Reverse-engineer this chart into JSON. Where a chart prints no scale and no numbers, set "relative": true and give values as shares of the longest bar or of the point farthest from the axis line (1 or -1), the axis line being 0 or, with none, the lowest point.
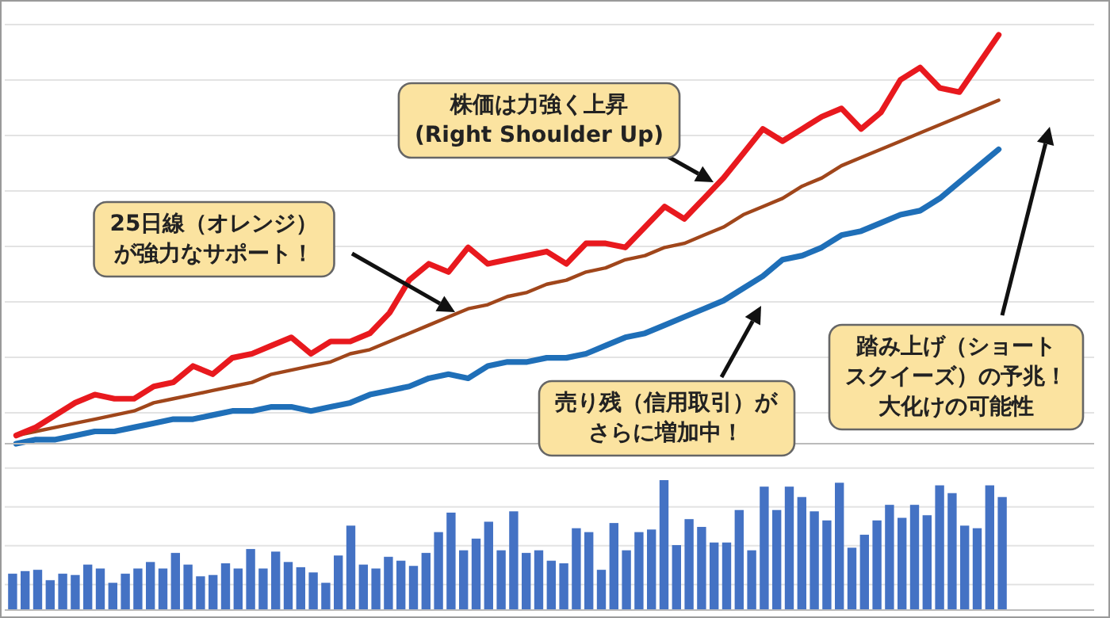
{
  "chart_data": [
    {
      "type": "line",
      "relative": true,
      "grid": true,
      "categories": [
        null,
        null,
        null,
        null,
        null,
        null,
        null,
        null,
        null,
        null,
        null,
        null,
        null,
        null,
        null,
        null,
        null,
        null,
        null,
        null,
        null,
        null,
        null,
        null,
        null,
        null,
        null,
        null,
        null,
        null,
        null,
        null,
        null,
        null,
        null,
        null,
        null,
        null,
        null,
        null,
        null,
        null,
        null,
        null,
        null,
        null,
        null,
        null,
        null,
        null,
        null
      ],
      "series": [
        {
          "color": "#a0461b",
          "values": [
            0.02,
            0.03,
            0.04,
            0.05,
            0.06,
            0.07,
            0.08,
            0.1,
            0.11,
            0.12,
            0.13,
            0.14,
            0.15,
            0.17,
            0.18,
            0.19,
            0.2,
            0.22,
            0.23,
            0.25,
            0.27,
            0.29,
            0.31,
            0.33,
            0.34,
            0.36,
            0.37,
            0.39,
            0.4,
            0.42,
            0.43,
            0.45,
            0.46,
            0.48,
            0.49,
            0.51,
            0.53,
            0.56,
            0.58,
            0.6,
            0.63,
            0.65,
            0.68,
            0.7,
            0.72,
            0.74,
            0.76,
            0.78,
            0.8,
            0.82,
            0.84
          ]
        },
        {
          "color": "#1f6fb8",
          "values": [
            0,
            0.01,
            0.01,
            0.02,
            0.03,
            0.03,
            0.04,
            0.05,
            0.06,
            0.06,
            0.07,
            0.08,
            0.08,
            0.09,
            0.09,
            0.08,
            0.09,
            0.1,
            0.12,
            0.13,
            0.14,
            0.16,
            0.17,
            0.16,
            0.19,
            0.2,
            0.2,
            0.21,
            0.21,
            0.22,
            0.24,
            0.26,
            0.27,
            0.29,
            0.31,
            0.33,
            0.35,
            0.38,
            0.41,
            0.45,
            0.46,
            0.48,
            0.51,
            0.52,
            0.54,
            0.56,
            0.57,
            0.6,
            0.64,
            0.68,
            0.72
          ]
        },
        {
          "color": "#e8191e",
          "values": [
            0.02,
            0.04,
            0.07,
            0.1,
            0.12,
            0.11,
            0.11,
            0.14,
            0.15,
            0.19,
            0.17,
            0.21,
            0.22,
            0.24,
            0.26,
            0.22,
            0.25,
            0.25,
            0.27,
            0.32,
            0.4,
            0.44,
            0.42,
            0.48,
            0.44,
            0.45,
            0.46,
            0.47,
            0.44,
            0.49,
            0.49,
            0.48,
            0.53,
            0.58,
            0.55,
            0.6,
            0.65,
            0.71,
            0.77,
            0.74,
            0.77,
            0.8,
            0.82,
            0.77,
            0.81,
            0.89,
            0.92,
            0.87,
            0.86,
            0.93,
            1.0
          ]
        }
      ],
      "annotations": [
        "株価は力強く上昇\n(Right Shoulder Up)",
        "25日線（オレンジ）が強力なサポート！",
        "売り残（信用取引）がさらに増加中！",
        "踏み上げ（ショートスクイーズ）の予兆！大化けの可能性"
      ]
    },
    {
      "type": "bar",
      "relative": true,
      "grid": true,
      "color": "#4472c4",
      "categories": [
        null,
        null,
        null,
        null,
        null,
        null,
        null,
        null,
        null,
        null,
        null,
        null,
        null,
        null,
        null,
        null,
        null,
        null,
        null,
        null,
        null,
        null,
        null,
        null,
        null,
        null,
        null,
        null,
        null,
        null,
        null,
        null,
        null,
        null,
        null,
        null,
        null,
        null,
        null,
        null,
        null,
        null,
        null,
        null,
        null,
        null,
        null,
        null,
        null,
        null,
        null,
        null,
        null,
        null,
        null,
        null,
        null,
        null,
        null,
        null,
        null,
        null,
        null,
        null,
        null,
        null,
        null,
        null,
        null,
        null,
        null,
        null,
        null,
        null,
        null,
        null,
        null,
        null,
        null,
        null
      ],
      "values": [
        0.28,
        0.3,
        0.31,
        0.23,
        0.28,
        0.27,
        0.35,
        0.32,
        0.21,
        0.28,
        0.32,
        0.37,
        0.32,
        0.44,
        0.35,
        0.26,
        0.27,
        0.36,
        0.32,
        0.47,
        0.32,
        0.45,
        0.37,
        0.33,
        0.29,
        0.21,
        0.42,
        0.65,
        0.35,
        0.32,
        0.41,
        0.38,
        0.34,
        0.44,
        0.6,
        0.75,
        0.46,
        0.55,
        0.68,
        0.46,
        0.76,
        0.44,
        0.46,
        0.38,
        0.36,
        0.63,
        0.6,
        0.31,
        0.67,
        0.46,
        0.6,
        0.62,
        1.0,
        0.5,
        0.7,
        0.64,
        0.52,
        0.52,
        0.77,
        0.46,
        0.95,
        0.77,
        0.95,
        0.87,
        0.76,
        0.69,
        0.98,
        0.48,
        0.58,
        0.69,
        0.81,
        0.71,
        0.81,
        0.73,
        0.96,
        0.9,
        0.65,
        0.63,
        0.96,
        0.87
      ]
    }
  ]
}
